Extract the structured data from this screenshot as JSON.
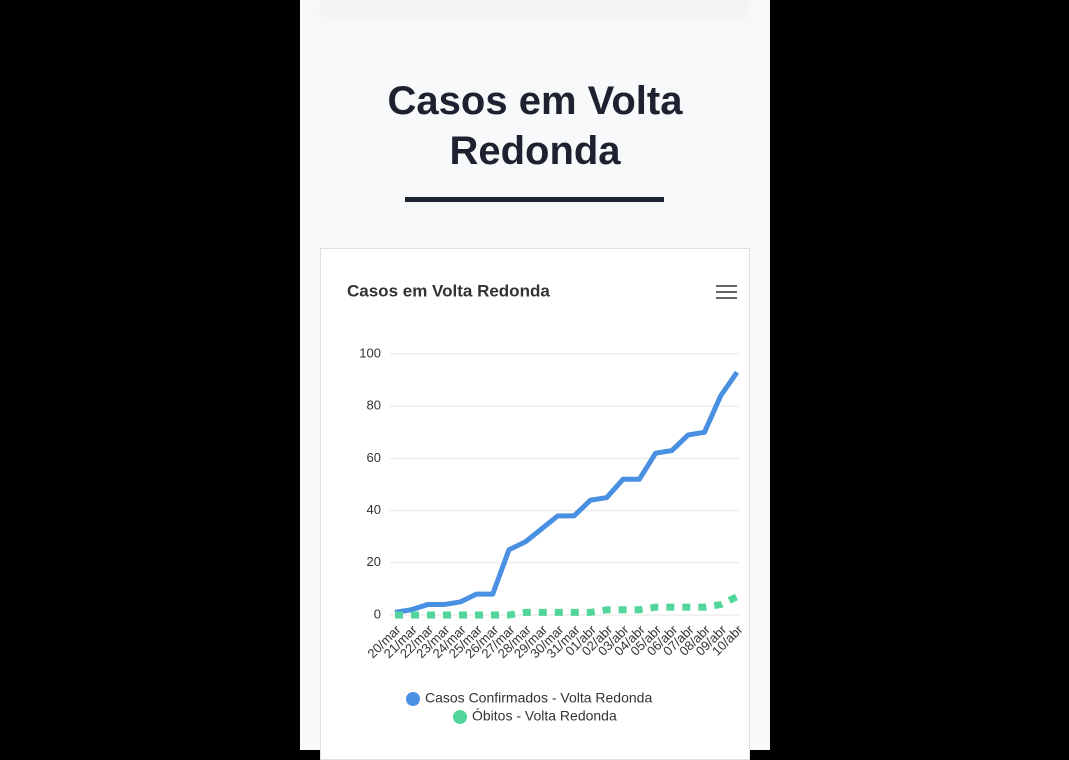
{
  "header": {
    "title": "Casos em Volta Redonda"
  },
  "chart_data": {
    "type": "line",
    "title": "Casos em Volta Redonda",
    "categories": [
      "20/mar",
      "21/mar",
      "22/mar",
      "23/mar",
      "24/mar",
      "25/mar",
      "26/mar",
      "27/mar",
      "28/mar",
      "29/mar",
      "30/mar",
      "31/mar",
      "01/abr",
      "02/abr",
      "03/abr",
      "04/abr",
      "05/abr",
      "06/abr",
      "07/abr",
      "08/abr",
      "09/abr",
      "10/abr"
    ],
    "series": [
      {
        "name": "Casos Confirmados - Volta Redonda",
        "color": "#4a90e2",
        "style": "solid",
        "values": [
          1,
          2,
          4,
          4,
          5,
          8,
          8,
          25,
          28,
          33,
          38,
          38,
          44,
          45,
          52,
          52,
          62,
          63,
          69,
          70,
          84,
          93
        ]
      },
      {
        "name": "Óbitos - Volta Redonda",
        "color": "#52d69b",
        "style": "dashed",
        "values": [
          0,
          0,
          0,
          0,
          0,
          0,
          0,
          0,
          1,
          1,
          1,
          1,
          1,
          2,
          2,
          2,
          3,
          3,
          3,
          3,
          4,
          7
        ]
      }
    ],
    "ylim": [
      0,
      100
    ],
    "yticks": [
      0,
      20,
      40,
      60,
      80,
      100
    ],
    "grid": true,
    "legend": "bottom"
  }
}
